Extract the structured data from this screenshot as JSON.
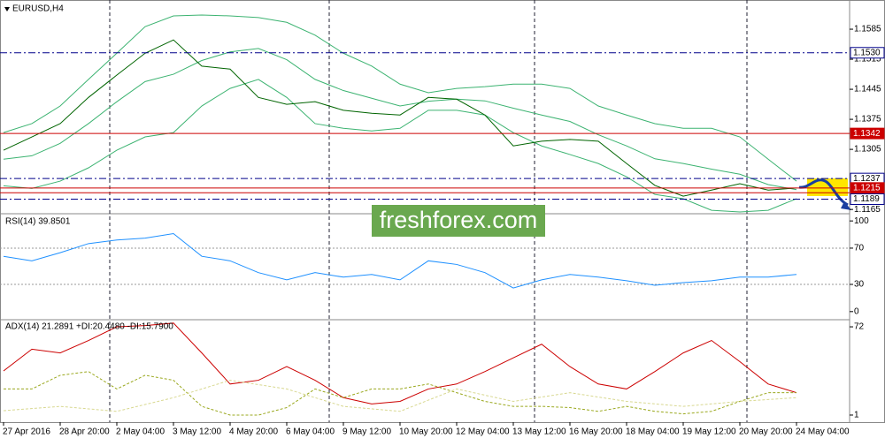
{
  "symbol": "EURUSD,H4",
  "bar_index": [
    0,
    4,
    8,
    12,
    16,
    20,
    24,
    28,
    32,
    36,
    40,
    44,
    48,
    52,
    56,
    60,
    64,
    68,
    72,
    76,
    80,
    84,
    88,
    92,
    96,
    100,
    104,
    108,
    112
  ],
  "price_panel": {
    "ylim": [
      1.1155,
      1.1653
    ],
    "ticks": [
      1.1585,
      1.1515,
      1.1445,
      1.1375,
      1.1305,
      1.1165
    ],
    "close": {
      "color": "#006400",
      "values": [
        1.1303,
        1.1334,
        1.1365,
        1.1426,
        1.1478,
        1.1529,
        1.156,
        1.1499,
        1.1492,
        1.1426,
        1.141,
        1.1416,
        1.1396,
        1.1389,
        1.1385,
        1.1426,
        1.1422,
        1.1385,
        1.1313,
        1.1324,
        1.1328,
        1.1324,
        1.1272,
        1.1221,
        1.1196,
        1.121,
        1.1225,
        1.121,
        1.1215
      ]
    },
    "bands": [
      {
        "color": "#3cb371",
        "values": [
          1.1344,
          1.1365,
          1.1406,
          1.1468,
          1.1529,
          1.1591,
          1.1616,
          1.1618,
          1.1616,
          1.1612,
          1.1601,
          1.1571,
          1.1529,
          1.1499,
          1.1457,
          1.1437,
          1.1447,
          1.1451,
          1.1457,
          1.1457,
          1.1447,
          1.1406,
          1.1385,
          1.1365,
          1.1354,
          1.1354,
          1.1334,
          1.1282,
          1.1231
        ]
      },
      {
        "color": "#3cb371",
        "values": [
          1.1282,
          1.129,
          1.1319,
          1.1365,
          1.1416,
          1.1463,
          1.148,
          1.1512,
          1.1532,
          1.154,
          1.1514,
          1.1468,
          1.1442,
          1.1424,
          1.1406,
          1.1417,
          1.1422,
          1.1418,
          1.1401,
          1.1385,
          1.137,
          1.1339,
          1.1313,
          1.1283,
          1.1272,
          1.1259,
          1.1247,
          1.1223,
          1.1211
        ]
      },
      {
        "color": "#3cb371",
        "values": [
          1.122,
          1.1214,
          1.1231,
          1.1262,
          1.1303,
          1.1334,
          1.1344,
          1.1406,
          1.1447,
          1.1468,
          1.1426,
          1.1365,
          1.1354,
          1.1348,
          1.1354,
          1.1396,
          1.1396,
          1.1385,
          1.1344,
          1.1313,
          1.1293,
          1.1272,
          1.1241,
          1.12,
          1.119,
          1.1163,
          1.1159,
          1.1163,
          1.119
        ]
      }
    ],
    "levels": [
      {
        "price": 1.153,
        "label": "1.1530",
        "color": "#00008b",
        "style": "dashdot"
      },
      {
        "price": 1.1342,
        "color": "#cc0000",
        "style": "solid"
      },
      {
        "price": 1.1237,
        "color": "#00008b",
        "style": "dashdot"
      },
      {
        "price": 1.1215,
        "color": "#cc0000",
        "style": "solid"
      },
      {
        "price": 1.1204,
        "color": "#cc0000",
        "style": "solid",
        "tag": false
      },
      {
        "price": 1.1189,
        "color": "#00008b",
        "style": "dashdot"
      }
    ]
  },
  "rsi_panel": {
    "header": "RSI(14) 39.8501",
    "ylim": [
      -7,
      106
    ],
    "ticks": [
      100,
      70,
      30,
      0
    ],
    "levels": [
      70,
      30
    ],
    "line": {
      "color": "#1e90ff",
      "values": [
        61,
        56,
        65,
        75,
        79,
        81,
        86,
        61,
        56,
        43,
        35,
        43,
        38,
        41,
        35,
        56,
        52,
        43,
        26,
        35,
        41,
        38,
        34,
        29,
        32,
        34,
        38,
        38,
        41
      ]
    }
  },
  "adx_panel": {
    "header": "ADX(14) 21.2891 +DI:20.4480 -DI:15.7900",
    "ylim": [
      -4.7,
      76.3
    ],
    "ticks": [
      72,
      1
    ],
    "lines": [
      {
        "color": "#cc0000",
        "dash": false,
        "values": [
          36.5,
          54,
          51,
          61,
          72,
          73,
          75,
          51,
          26,
          29,
          40,
          29,
          15,
          10,
          12,
          22,
          26,
          36,
          47,
          58,
          40,
          26,
          22,
          36,
          51,
          61,
          44,
          26,
          19
        ]
      },
      {
        "color": "#9aa81e",
        "dash": true,
        "values": [
          22,
          22,
          33,
          36,
          22,
          33,
          29,
          8,
          1,
          1,
          7,
          22,
          15,
          22,
          22,
          26,
          19,
          12,
          8,
          8,
          7,
          4,
          8,
          4,
          2,
          4,
          12,
          19,
          19
        ]
      },
      {
        "color": "#d8d890",
        "dash": true,
        "x": [
          0,
          8,
          16,
          24,
          32,
          40,
          48,
          56,
          64,
          72,
          80,
          88,
          96,
          104,
          112
        ],
        "values": [
          4.5,
          8,
          4,
          15,
          29,
          22,
          8,
          4,
          22,
          12,
          19,
          12,
          8,
          12,
          15
        ]
      }
    ]
  },
  "time_axis": {
    "labels": [
      "27 Apr 2016",
      "28 Apr 20:00",
      "2 May 04:00",
      "3 May 12:00",
      "4 May 20:00",
      "6 May 04:00",
      "9 May 12:00",
      "10 May 20:00",
      "12 May 04:00",
      "13 May 12:00",
      "16 May 20:00",
      "18 May 04:00",
      "19 May 12:00",
      "20 May 20:00",
      "24 May 04:00"
    ],
    "bars": [
      0,
      8,
      16,
      24,
      32,
      40,
      48,
      56,
      64,
      72,
      80,
      88,
      96,
      104,
      112
    ]
  },
  "separators": [
    15,
    46,
    75,
    105
  ],
  "watermark": "freshforex.com"
}
